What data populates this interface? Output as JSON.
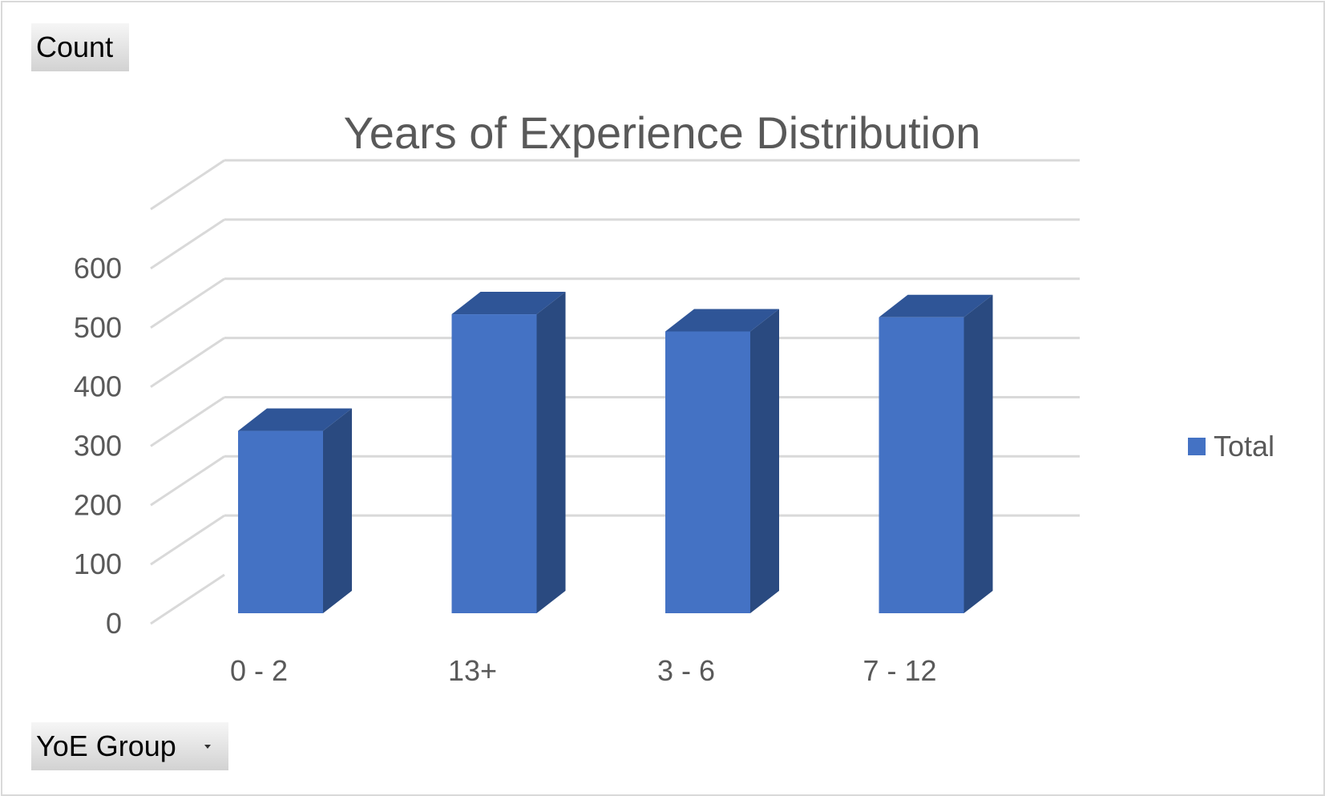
{
  "chart_data": {
    "type": "bar",
    "style": "3d-column",
    "title": "Years of Experience Distribution",
    "categories": [
      "0 - 2",
      "13+",
      "3 - 6",
      "7 - 12"
    ],
    "series": [
      {
        "name": "Total",
        "values": [
          308,
          505,
          476,
          500
        ]
      }
    ],
    "xlabel": "",
    "ylabel": "",
    "ylim": [
      0,
      700
    ],
    "yticks": [
      0,
      100,
      200,
      300,
      400,
      500,
      600
    ],
    "grid": true,
    "legend": "right",
    "colors": {
      "front": "#4472c4",
      "side": "#2a4a80",
      "top": "#2f5597",
      "grid": "#d9d9d9",
      "text": "#595959"
    }
  },
  "fields": {
    "value_field": "Count",
    "axis_field": "YoE Group"
  }
}
